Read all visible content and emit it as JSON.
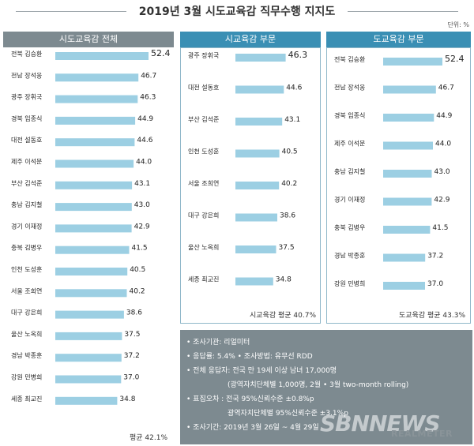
{
  "title": "2019년 3월 시도교육감 직무수행 지지도",
  "unit": "단위: %",
  "colors": {
    "bar": "#9ccfe3",
    "header_total": "#7d8a90",
    "header_city": "#3a8fb4",
    "header_province": "#3a8fb4"
  },
  "chart_data": [
    {
      "type": "bar",
      "orientation": "horizontal",
      "title": "시도교육감 전체",
      "categories": [
        "전북 김승환",
        "전남 장석웅",
        "광주 장휘국",
        "경북 임종식",
        "대전 설동호",
        "제주 이석문",
        "부산 김석준",
        "충남 김지철",
        "경기 이재정",
        "충북 김병우",
        "인천 도성훈",
        "서울 조희연",
        "대구 강은희",
        "울산 노옥희",
        "경남 박종훈",
        "강원 민병희",
        "세종 최교진"
      ],
      "values": [
        52.4,
        46.7,
        46.3,
        44.9,
        44.6,
        44.0,
        43.1,
        43.0,
        42.9,
        41.5,
        40.5,
        40.2,
        38.6,
        37.5,
        37.2,
        37.0,
        34.8
      ],
      "value_labels": [
        "52.4",
        "46.7",
        "46.3",
        "44.9",
        "44.6",
        "44.0",
        "43.1",
        "43.0",
        "42.9",
        "41.5",
        "40.5",
        "40.2",
        "38.6",
        "37.5",
        "37.2",
        "37.0",
        "34.8"
      ],
      "average": "평균 42.1%"
    },
    {
      "type": "bar",
      "orientation": "horizontal",
      "title": "시교육감 부문",
      "categories": [
        "광주 장휘국",
        "대전 설동호",
        "부산 김석준",
        "인천 도성훈",
        "서울 조희연",
        "대구 강은희",
        "울산 노옥희",
        "세종 최교진"
      ],
      "values": [
        46.3,
        44.6,
        43.1,
        40.5,
        40.2,
        38.6,
        37.5,
        34.8
      ],
      "value_labels": [
        "46.3",
        "44.6",
        "43.1",
        "40.5",
        "40.2",
        "38.6",
        "37.5",
        "34.8"
      ],
      "average": "시교육감 평균 40.7%"
    },
    {
      "type": "bar",
      "orientation": "horizontal",
      "title": "도교육감 부문",
      "categories": [
        "전북 김승환",
        "전남 장석웅",
        "경북 임종식",
        "제주 이석문",
        "충남 김지철",
        "경기 이재정",
        "충북 김병우",
        "경남 박종훈",
        "강원 민병희"
      ],
      "values": [
        52.4,
        46.7,
        44.9,
        44.0,
        43.0,
        42.9,
        41.5,
        37.2,
        37.0
      ],
      "value_labels": [
        "52.4",
        "46.7",
        "44.9",
        "44.0",
        "43.0",
        "42.9",
        "41.5",
        "37.2",
        "37.0"
      ],
      "average": "도교육감 평균 43.3%"
    }
  ],
  "notes": [
    "• 조사기관: 리얼미터",
    "• 응답률: 5.4% • 조사방법: 유무선 RDD",
    "• 전체 응답자: 전국 만 19세 이상 남녀 17,000명",
    "(광역자치단체별 1,000명, 2월 • 3월 two-month rolling)",
    "• 표집오차 : 전국 95%신뢰수준 ±0.8%p",
    "광역자치단체별 95%신뢰수준 ±3.1%p",
    "• 조사기간: 2019년 3월 26일 ~ 4월 29일"
  ],
  "watermarks": [
    "SBNNEWS",
    "REALMETER"
  ]
}
